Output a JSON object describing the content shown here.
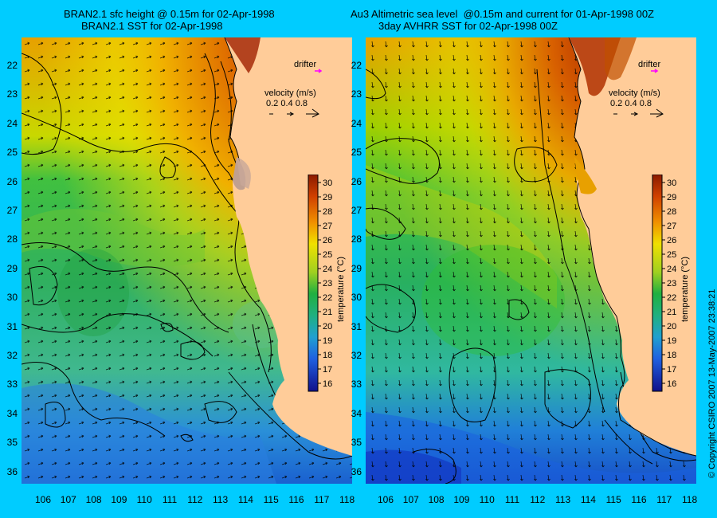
{
  "left_panel": {
    "title_line1": "BRAN2.1 sfc height @ 0.15m for 02-Apr-1998",
    "title_line2": "BRAN2.1 SST for 02-Apr-1998",
    "drifter_label": "drifter",
    "velocity_label": "velocity (m/s)",
    "velocity_scale": "0.2 0.4 0.8"
  },
  "right_panel": {
    "title_line1": "Au3 Altimetric sea level  @0.15m and current for 01-Apr-1998 00Z",
    "title_line2": "3day AVHRR SST for 02-Apr-1998 00Z",
    "drifter_label": "drifter",
    "velocity_label": "velocity (m/s)",
    "velocity_scale": "0.2 0.4 0.8"
  },
  "colorbar": {
    "label": "temperature (°C)",
    "ticks": [
      "30",
      "29",
      "28",
      "27",
      "26",
      "25",
      "24",
      "23",
      "22",
      "21",
      "20",
      "19",
      "18",
      "17",
      "16"
    ]
  },
  "y_axis_labels": [
    "22",
    "23",
    "24",
    "25",
    "26",
    "27",
    "28",
    "29",
    "30",
    "31",
    "32",
    "33",
    "34",
    "35",
    "36"
  ],
  "x_axis_labels": [
    "106",
    "107",
    "108",
    "109",
    "110",
    "111",
    "112",
    "113",
    "114",
    "115",
    "116",
    "117",
    "118"
  ],
  "copyright": "© Copyright CSIRO 2007  13-May-2007 23:38:21",
  "colors": {
    "background": "#00ccff",
    "land": "#ffcc99",
    "drifter_marker": "#ff00ff"
  }
}
